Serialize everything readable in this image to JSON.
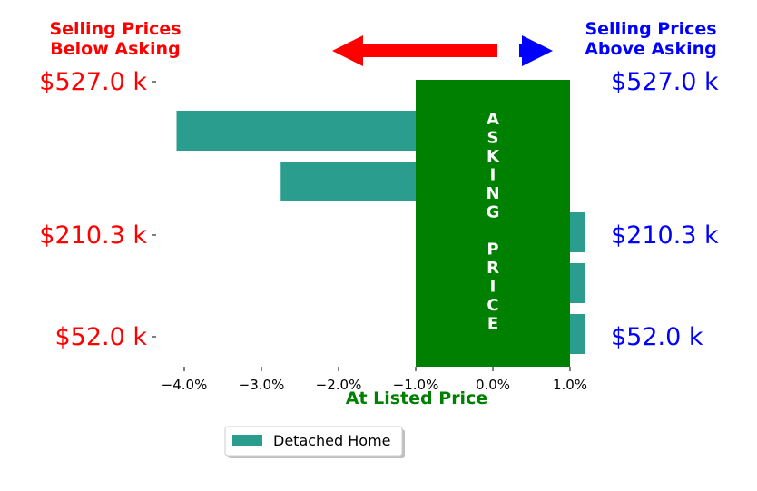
{
  "header": {
    "left_label_line1": "Selling Prices",
    "left_label_line2": "Below Asking",
    "right_label_line1": "Selling Prices",
    "right_label_line2": "Above Asking"
  },
  "center_band": {
    "vertical_text": "ASKING PRICE",
    "xlabel": "At Listed Price"
  },
  "legend": {
    "item": "Detached Home"
  },
  "colors": {
    "bar": "#2a9d8f",
    "asking_band": "#008000",
    "left_labels": "#ff0000",
    "right_labels": "#0000ff",
    "xlabel": "#008000"
  },
  "chart_data": {
    "type": "bar",
    "orientation": "horizontal",
    "series": [
      {
        "name": "Detached Home",
        "values": [
          -4.1,
          -2.75,
          1.2,
          1.2,
          1.2
        ]
      }
    ],
    "x_ticks": [
      "−4.0%",
      "−3.0%",
      "−2.0%",
      "−1.0%",
      "0.0%",
      "1.0%"
    ],
    "x_tick_values": [
      -4.0,
      -3.0,
      -2.0,
      -1.0,
      0.0,
      1.0
    ],
    "xlim": [
      -4.25,
      1.2
    ],
    "y_tick_labels_left": [
      "$527.0 k",
      "$210.3 k",
      "$52.0 k"
    ],
    "y_tick_labels_right": [
      "$527.0 k",
      "$210.3 k",
      "$52.0 k"
    ],
    "asking_band_range": [
      -1.0,
      1.0
    ],
    "xlabel": "At Listed Price",
    "legend_position": "bottom-center"
  }
}
